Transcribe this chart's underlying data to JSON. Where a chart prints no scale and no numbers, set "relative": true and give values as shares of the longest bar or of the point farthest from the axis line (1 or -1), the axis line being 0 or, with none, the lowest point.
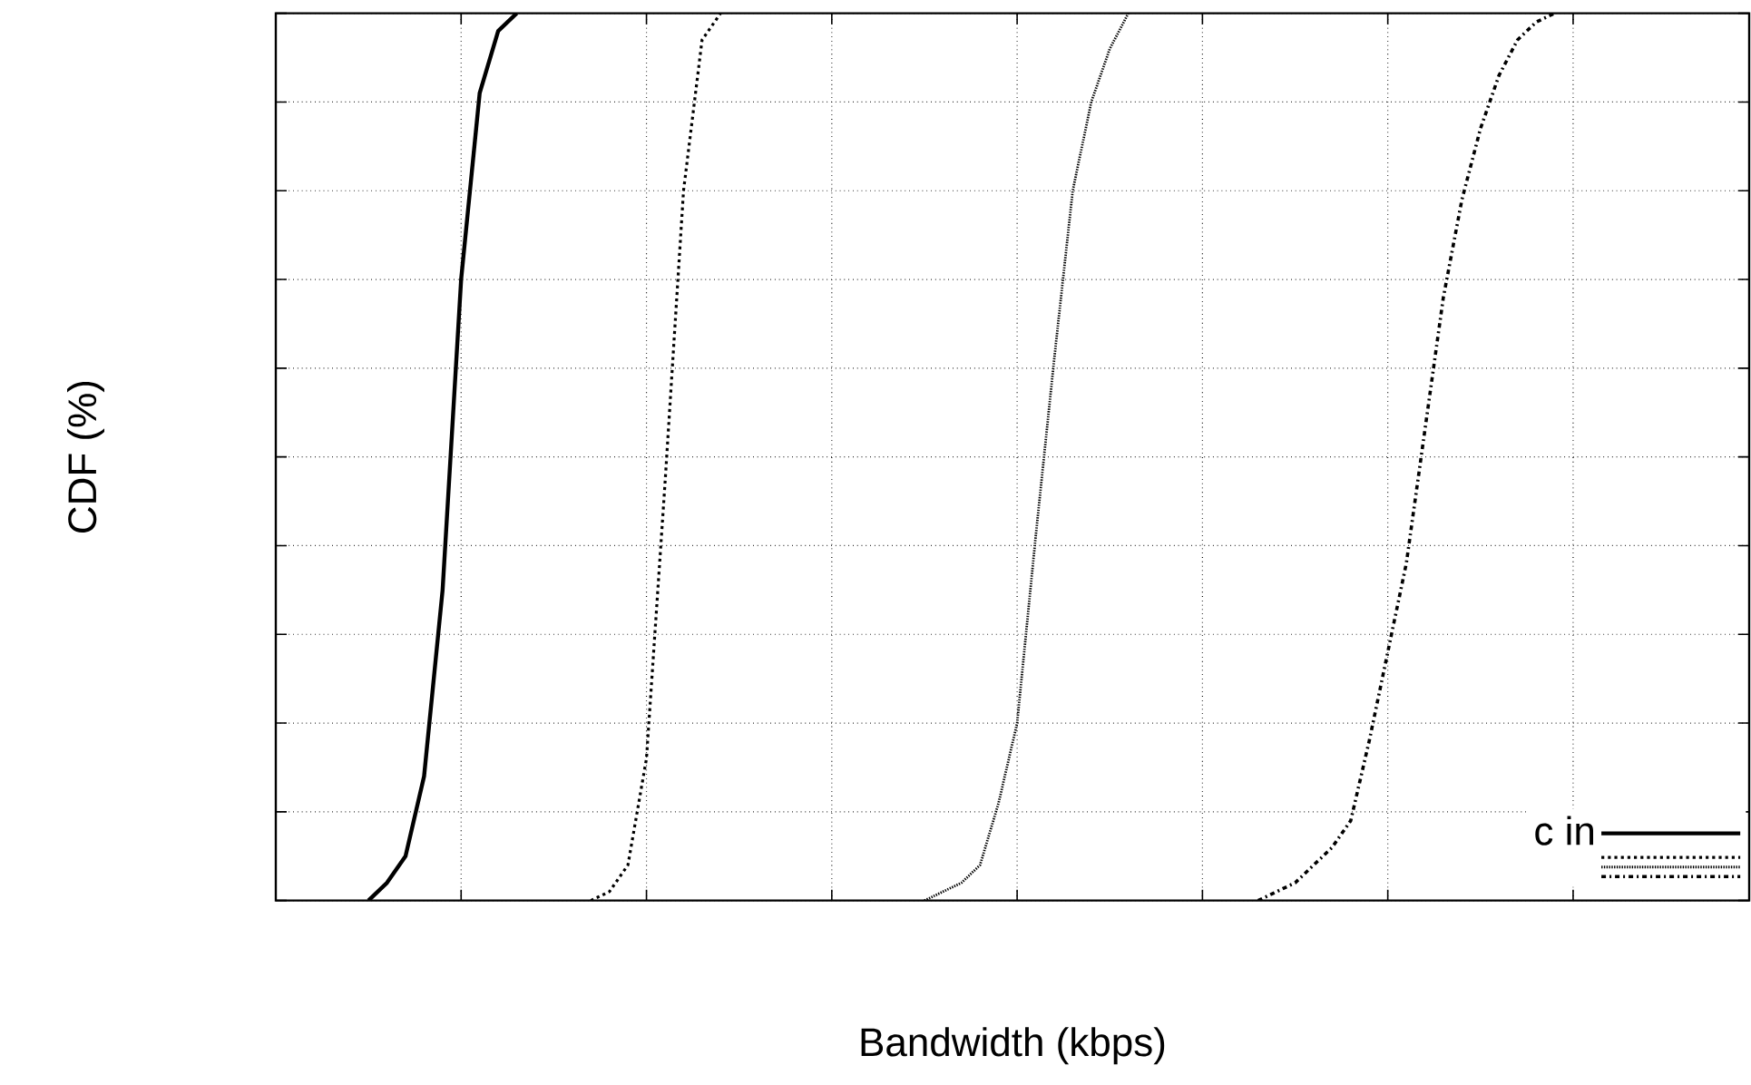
{
  "chart_data": {
    "type": "line",
    "xlabel": "Bandwidth (kbps)",
    "ylabel": "CDF (%)",
    "relative": true,
    "grid": true,
    "legend": "bottom right",
    "categories": [
      null,
      null,
      null,
      null,
      null,
      null,
      null,
      null,
      null,
      null,
      null,
      null,
      null,
      null,
      null,
      null,
      null,
      null,
      null,
      null,
      null,
      null,
      null,
      null,
      null,
      null,
      null,
      null,
      null,
      null,
      null,
      null,
      null,
      null,
      null,
      null,
      null,
      null,
      null,
      null,
      null,
      null,
      null,
      null,
      null,
      null,
      null,
      null,
      null,
      null,
      null,
      null,
      null,
      null,
      null,
      null,
      null,
      null,
      null,
      null,
      null,
      null,
      null,
      null,
      null,
      null,
      null,
      null,
      null,
      null,
      null,
      null,
      null,
      null,
      null,
      null,
      null,
      null,
      null,
      null
    ],
    "series": [
      {
        "name": "c in",
        "color": "#000000",
        "line_style": "solid",
        "values": [
          null,
          null,
          null,
          null,
          null,
          0,
          0.02,
          0.05,
          0.14,
          0.35,
          0.7,
          0.91,
          0.98,
          1,
          null,
          null,
          null,
          null,
          null,
          null,
          null,
          null,
          null,
          null,
          null,
          null,
          null,
          null,
          null,
          null,
          null,
          null,
          null,
          null,
          null,
          null,
          null,
          null,
          null,
          null,
          null,
          null,
          null,
          null,
          null,
          null,
          null,
          null,
          null,
          null,
          null,
          null,
          null,
          null,
          null,
          null,
          null,
          null,
          null,
          null,
          null,
          null,
          null,
          null,
          null,
          null,
          null,
          null,
          null,
          null,
          null,
          null,
          null,
          null,
          null,
          null,
          null,
          null,
          null,
          null
        ]
      },
      {
        "color": "#000000",
        "line_style": "dotted",
        "values": [
          null,
          null,
          null,
          null,
          null,
          null,
          null,
          null,
          null,
          null,
          null,
          null,
          null,
          null,
          null,
          null,
          null,
          0,
          0.01,
          0.04,
          0.16,
          0.47,
          0.8,
          0.97,
          1,
          null,
          null,
          null,
          null,
          null,
          null,
          null,
          null,
          null,
          null,
          null,
          null,
          null,
          null,
          null,
          null,
          null,
          null,
          null,
          null,
          null,
          null,
          null,
          null,
          null,
          null,
          null,
          null,
          null,
          null,
          null,
          null,
          null,
          null,
          null,
          null,
          null,
          null,
          null,
          null,
          null,
          null,
          null,
          null,
          null,
          null,
          null,
          null,
          null,
          null,
          null,
          null,
          null,
          null,
          null
        ]
      },
      {
        "color": "#000000",
        "line_style": "densely dotted",
        "values": [
          null,
          null,
          null,
          null,
          null,
          null,
          null,
          null,
          null,
          null,
          null,
          null,
          null,
          null,
          null,
          null,
          null,
          null,
          null,
          null,
          null,
          null,
          null,
          null,
          null,
          null,
          null,
          null,
          null,
          null,
          null,
          null,
          null,
          null,
          null,
          0,
          0.01,
          0.02,
          0.04,
          0.11,
          0.2,
          0.41,
          0.61,
          0.8,
          0.9,
          0.96,
          1,
          null,
          null,
          null,
          null,
          null,
          null,
          null,
          null,
          null,
          null,
          null,
          null,
          null,
          null,
          null,
          null,
          null,
          null,
          null,
          null,
          null,
          null,
          null,
          null,
          null,
          null,
          null,
          null,
          null,
          null,
          null,
          null,
          null
        ]
      },
      {
        "color": "#000000",
        "line_style": "dashdotted",
        "values": [
          null,
          null,
          null,
          null,
          null,
          null,
          null,
          null,
          null,
          null,
          null,
          null,
          null,
          null,
          null,
          null,
          null,
          null,
          null,
          null,
          null,
          null,
          null,
          null,
          null,
          null,
          null,
          null,
          null,
          null,
          null,
          null,
          null,
          null,
          null,
          null,
          null,
          null,
          null,
          null,
          null,
          null,
          null,
          null,
          null,
          null,
          null,
          null,
          null,
          null,
          null,
          null,
          null,
          0,
          0.01,
          0.02,
          0.04,
          0.06,
          0.09,
          0.18,
          0.28,
          0.38,
          0.53,
          0.68,
          0.79,
          0.87,
          0.93,
          0.97,
          0.99,
          1,
          null,
          null,
          null,
          null,
          null,
          null,
          null,
          null,
          null,
          null
        ]
      }
    ]
  }
}
